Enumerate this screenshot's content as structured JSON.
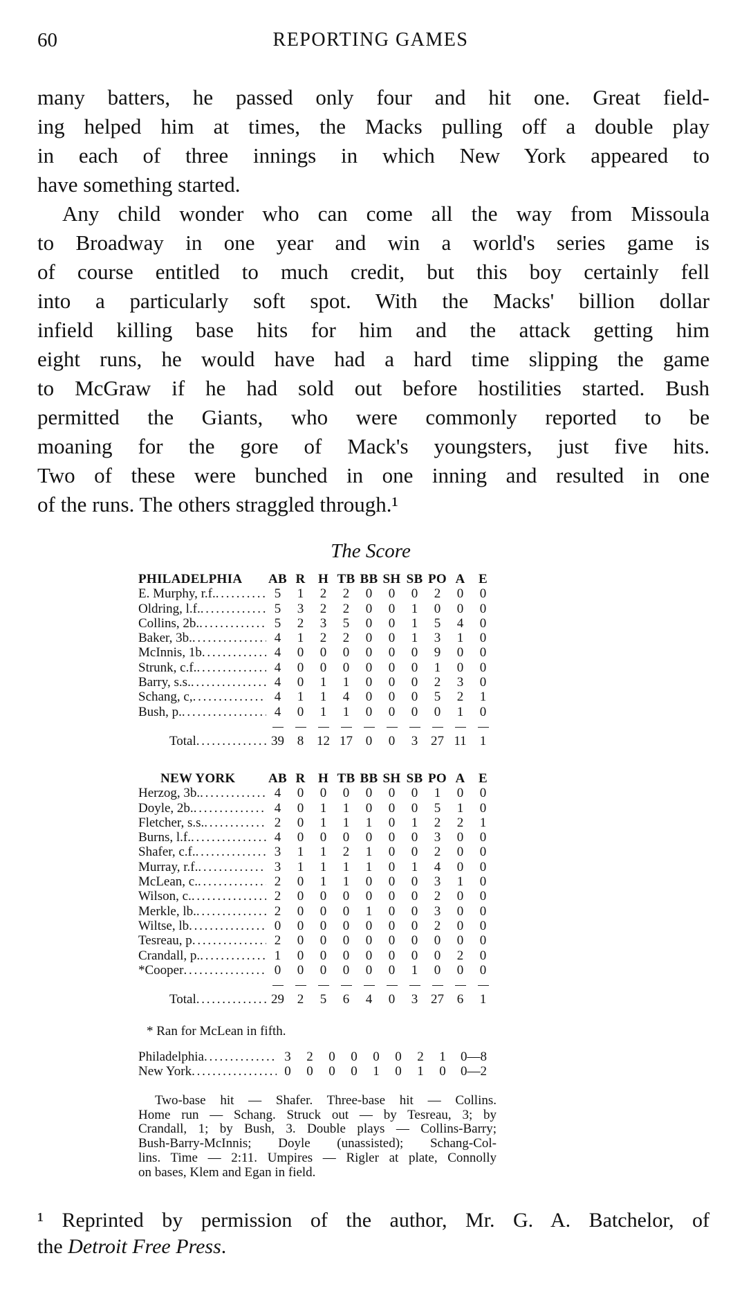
{
  "header": {
    "page_number": "60",
    "running_head": "REPORTING GAMES"
  },
  "body": {
    "paragraphs": [
      {
        "indent": false,
        "lines": [
          "many batters, he passed only four and hit one. Great field-",
          "ing helped him at times, the Macks pulling off a double play",
          "in each of three innings in which New York appeared to",
          "have something started."
        ]
      },
      {
        "indent": true,
        "lines": [
          "Any child wonder who can come all the way from Missoula",
          "to Broadway in one year and win a world's series game is",
          "of course entitled to much credit, but this boy certainly fell",
          "into a particularly soft spot. With the Macks' billion dollar",
          "infield killing base hits for him and the attack getting him",
          "eight runs, he would have had a hard time slipping the game",
          "to McGraw if he had sold out before hostilities started. Bush",
          "permitted the Giants, who were commonly reported to be",
          "moaning for the gore of Mack's youngsters, just five hits.",
          "Two of these were bunched in one inning and resulted in one",
          "of the runs. The others straggled through.¹"
        ]
      }
    ]
  },
  "score": {
    "title": "The Score",
    "columns": [
      "AB",
      "R",
      "H",
      "TB",
      "BB",
      "SH",
      "SB",
      "PO",
      "A",
      "E"
    ],
    "teams": [
      {
        "name": "PHILADELPHIA",
        "players": [
          {
            "name": "E. Murphy, r.f.",
            "stats": [
              5,
              1,
              2,
              2,
              0,
              0,
              0,
              2,
              0,
              0
            ]
          },
          {
            "name": "Oldring, l.f.",
            "stats": [
              5,
              3,
              2,
              2,
              0,
              0,
              1,
              0,
              0,
              0
            ]
          },
          {
            "name": "Collins, 2b.",
            "stats": [
              5,
              2,
              3,
              5,
              0,
              0,
              1,
              5,
              4,
              0
            ]
          },
          {
            "name": "Baker, 3b.",
            "stats": [
              4,
              1,
              2,
              2,
              0,
              0,
              1,
              3,
              1,
              0
            ]
          },
          {
            "name": "McInnis, 1b",
            "stats": [
              4,
              0,
              0,
              0,
              0,
              0,
              0,
              9,
              0,
              0
            ]
          },
          {
            "name": "Strunk, c.f.",
            "stats": [
              4,
              0,
              0,
              0,
              0,
              0,
              0,
              1,
              0,
              0
            ]
          },
          {
            "name": "Barry, s.s.",
            "stats": [
              4,
              0,
              1,
              1,
              0,
              0,
              0,
              2,
              3,
              0
            ]
          },
          {
            "name": "Schang, c,",
            "stats": [
              4,
              1,
              1,
              4,
              0,
              0,
              0,
              5,
              2,
              1
            ]
          },
          {
            "name": "Bush, p.",
            "stats": [
              4,
              0,
              1,
              1,
              0,
              0,
              0,
              0,
              1,
              0
            ]
          }
        ],
        "total_label": "Total",
        "totals": [
          39,
          8,
          12,
          17,
          0,
          0,
          3,
          27,
          11,
          1
        ]
      },
      {
        "name": "NEW YORK",
        "players": [
          {
            "name": "Herzog, 3b.",
            "stats": [
              4,
              0,
              0,
              0,
              0,
              0,
              0,
              1,
              0,
              0
            ]
          },
          {
            "name": "Doyle, 2b.",
            "stats": [
              4,
              0,
              1,
              1,
              0,
              0,
              0,
              5,
              1,
              0
            ]
          },
          {
            "name": "Fletcher, s.s.",
            "stats": [
              2,
              0,
              1,
              1,
              1,
              0,
              1,
              2,
              2,
              1
            ]
          },
          {
            "name": "Burns, l.f.",
            "stats": [
              4,
              0,
              0,
              0,
              0,
              0,
              0,
              3,
              0,
              0
            ]
          },
          {
            "name": "Shafer, c.f.",
            "stats": [
              3,
              1,
              1,
              2,
              1,
              0,
              0,
              2,
              0,
              0
            ]
          },
          {
            "name": "Murray, r.f.",
            "stats": [
              3,
              1,
              1,
              1,
              1,
              0,
              1,
              4,
              0,
              0
            ]
          },
          {
            "name": "McLean, c.",
            "stats": [
              2,
              0,
              1,
              1,
              0,
              0,
              0,
              3,
              1,
              0
            ]
          },
          {
            "name": "Wilson, c.",
            "stats": [
              2,
              0,
              0,
              0,
              0,
              0,
              0,
              2,
              0,
              0
            ]
          },
          {
            "name": "Merkle, lb.",
            "stats": [
              2,
              0,
              0,
              0,
              1,
              0,
              0,
              3,
              0,
              0
            ]
          },
          {
            "name": "Wiltse, lb",
            "stats": [
              0,
              0,
              0,
              0,
              0,
              0,
              0,
              2,
              0,
              0
            ]
          },
          {
            "name": "Tesreau, p",
            "stats": [
              2,
              0,
              0,
              0,
              0,
              0,
              0,
              0,
              0,
              0
            ]
          },
          {
            "name": "Crandall, p.",
            "stats": [
              1,
              0,
              0,
              0,
              0,
              0,
              0,
              0,
              2,
              0
            ]
          },
          {
            "name": "*Cooper",
            "stats": [
              0,
              0,
              0,
              0,
              0,
              0,
              1,
              0,
              0,
              0
            ]
          }
        ],
        "total_label": "Total",
        "totals": [
          29,
          2,
          5,
          6,
          4,
          0,
          3,
          27,
          6,
          1
        ]
      }
    ],
    "footnote": "* Ran for McLean in fifth.",
    "linescore": [
      {
        "team": "Philadelphia",
        "innings": [
          3,
          2,
          0,
          0,
          0,
          0,
          2,
          1,
          0
        ],
        "runs": 8
      },
      {
        "team": "New York",
        "innings": [
          0,
          0,
          0,
          0,
          1,
          0,
          1,
          0,
          0
        ],
        "runs": 2
      }
    ],
    "notes": {
      "lines": [
        "Two-base hit — Shafer. Three-base hit — Collins.",
        "Home run — Schang. Struck out — by Tesreau, 3; by",
        "Crandall, 1; by Bush, 3. Double plays — Collins-Barry;",
        "Bush-Barry-McInnis; Doyle (unassisted); Schang-Col-",
        "lins. Time — 2:11. Umpires — Rigler at plate, Connolly",
        "on bases, Klem and Egan in field."
      ]
    }
  },
  "footnote": {
    "line1": "¹ Reprinted by permission of the author, Mr. G. A. Batchelor, of",
    "line2_prefix": "the ",
    "line2_italic": "Detroit Free Press",
    "line2_suffix": "."
  }
}
